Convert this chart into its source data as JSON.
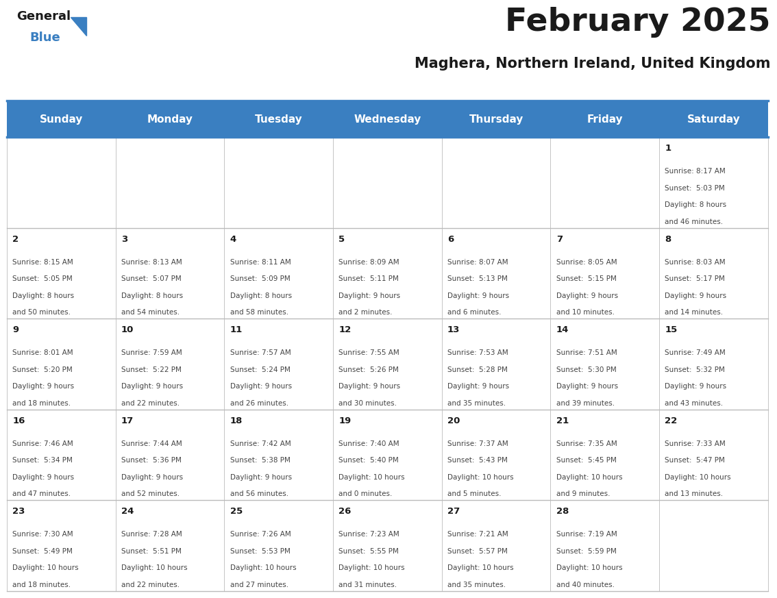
{
  "title": "February 2025",
  "subtitle": "Maghera, Northern Ireland, United Kingdom",
  "header_color": "#3a7fc1",
  "header_text_color": "#ffffff",
  "cell_bg_color": "#ffffff",
  "day_names": [
    "Sunday",
    "Monday",
    "Tuesday",
    "Wednesday",
    "Thursday",
    "Friday",
    "Saturday"
  ],
  "days": [
    {
      "date": 1,
      "col": 6,
      "row": 0,
      "sunrise": "8:17 AM",
      "sunset": "5:03 PM",
      "daylight": "8 hours and 46 minutes."
    },
    {
      "date": 2,
      "col": 0,
      "row": 1,
      "sunrise": "8:15 AM",
      "sunset": "5:05 PM",
      "daylight": "8 hours and 50 minutes."
    },
    {
      "date": 3,
      "col": 1,
      "row": 1,
      "sunrise": "8:13 AM",
      "sunset": "5:07 PM",
      "daylight": "8 hours and 54 minutes."
    },
    {
      "date": 4,
      "col": 2,
      "row": 1,
      "sunrise": "8:11 AM",
      "sunset": "5:09 PM",
      "daylight": "8 hours and 58 minutes."
    },
    {
      "date": 5,
      "col": 3,
      "row": 1,
      "sunrise": "8:09 AM",
      "sunset": "5:11 PM",
      "daylight": "9 hours and 2 minutes."
    },
    {
      "date": 6,
      "col": 4,
      "row": 1,
      "sunrise": "8:07 AM",
      "sunset": "5:13 PM",
      "daylight": "9 hours and 6 minutes."
    },
    {
      "date": 7,
      "col": 5,
      "row": 1,
      "sunrise": "8:05 AM",
      "sunset": "5:15 PM",
      "daylight": "9 hours and 10 minutes."
    },
    {
      "date": 8,
      "col": 6,
      "row": 1,
      "sunrise": "8:03 AM",
      "sunset": "5:17 PM",
      "daylight": "9 hours and 14 minutes."
    },
    {
      "date": 9,
      "col": 0,
      "row": 2,
      "sunrise": "8:01 AM",
      "sunset": "5:20 PM",
      "daylight": "9 hours and 18 minutes."
    },
    {
      "date": 10,
      "col": 1,
      "row": 2,
      "sunrise": "7:59 AM",
      "sunset": "5:22 PM",
      "daylight": "9 hours and 22 minutes."
    },
    {
      "date": 11,
      "col": 2,
      "row": 2,
      "sunrise": "7:57 AM",
      "sunset": "5:24 PM",
      "daylight": "9 hours and 26 minutes."
    },
    {
      "date": 12,
      "col": 3,
      "row": 2,
      "sunrise": "7:55 AM",
      "sunset": "5:26 PM",
      "daylight": "9 hours and 30 minutes."
    },
    {
      "date": 13,
      "col": 4,
      "row": 2,
      "sunrise": "7:53 AM",
      "sunset": "5:28 PM",
      "daylight": "9 hours and 35 minutes."
    },
    {
      "date": 14,
      "col": 5,
      "row": 2,
      "sunrise": "7:51 AM",
      "sunset": "5:30 PM",
      "daylight": "9 hours and 39 minutes."
    },
    {
      "date": 15,
      "col": 6,
      "row": 2,
      "sunrise": "7:49 AM",
      "sunset": "5:32 PM",
      "daylight": "9 hours and 43 minutes."
    },
    {
      "date": 16,
      "col": 0,
      "row": 3,
      "sunrise": "7:46 AM",
      "sunset": "5:34 PM",
      "daylight": "9 hours and 47 minutes."
    },
    {
      "date": 17,
      "col": 1,
      "row": 3,
      "sunrise": "7:44 AM",
      "sunset": "5:36 PM",
      "daylight": "9 hours and 52 minutes."
    },
    {
      "date": 18,
      "col": 2,
      "row": 3,
      "sunrise": "7:42 AM",
      "sunset": "5:38 PM",
      "daylight": "9 hours and 56 minutes."
    },
    {
      "date": 19,
      "col": 3,
      "row": 3,
      "sunrise": "7:40 AM",
      "sunset": "5:40 PM",
      "daylight": "10 hours and 0 minutes."
    },
    {
      "date": 20,
      "col": 4,
      "row": 3,
      "sunrise": "7:37 AM",
      "sunset": "5:43 PM",
      "daylight": "10 hours and 5 minutes."
    },
    {
      "date": 21,
      "col": 5,
      "row": 3,
      "sunrise": "7:35 AM",
      "sunset": "5:45 PM",
      "daylight": "10 hours and 9 minutes."
    },
    {
      "date": 22,
      "col": 6,
      "row": 3,
      "sunrise": "7:33 AM",
      "sunset": "5:47 PM",
      "daylight": "10 hours and 13 minutes."
    },
    {
      "date": 23,
      "col": 0,
      "row": 4,
      "sunrise": "7:30 AM",
      "sunset": "5:49 PM",
      "daylight": "10 hours and 18 minutes."
    },
    {
      "date": 24,
      "col": 1,
      "row": 4,
      "sunrise": "7:28 AM",
      "sunset": "5:51 PM",
      "daylight": "10 hours and 22 minutes."
    },
    {
      "date": 25,
      "col": 2,
      "row": 4,
      "sunrise": "7:26 AM",
      "sunset": "5:53 PM",
      "daylight": "10 hours and 27 minutes."
    },
    {
      "date": 26,
      "col": 3,
      "row": 4,
      "sunrise": "7:23 AM",
      "sunset": "5:55 PM",
      "daylight": "10 hours and 31 minutes."
    },
    {
      "date": 27,
      "col": 4,
      "row": 4,
      "sunrise": "7:21 AM",
      "sunset": "5:57 PM",
      "daylight": "10 hours and 35 minutes."
    },
    {
      "date": 28,
      "col": 5,
      "row": 4,
      "sunrise": "7:19 AM",
      "sunset": "5:59 PM",
      "daylight": "10 hours and 40 minutes."
    }
  ],
  "num_rows": 5,
  "num_cols": 7,
  "header_color_blue": "#3a7fc1",
  "logo_color_general": "#1a1a1a",
  "logo_color_blue": "#3a7fc1",
  "border_color": "#3a7fc1",
  "text_color": "#1a1a1a",
  "cell_text_color": "#444444",
  "date_num_color": "#1a1a1a",
  "divider_line_color": "#3a7fc1",
  "grid_line_color": "#bbbbbb"
}
